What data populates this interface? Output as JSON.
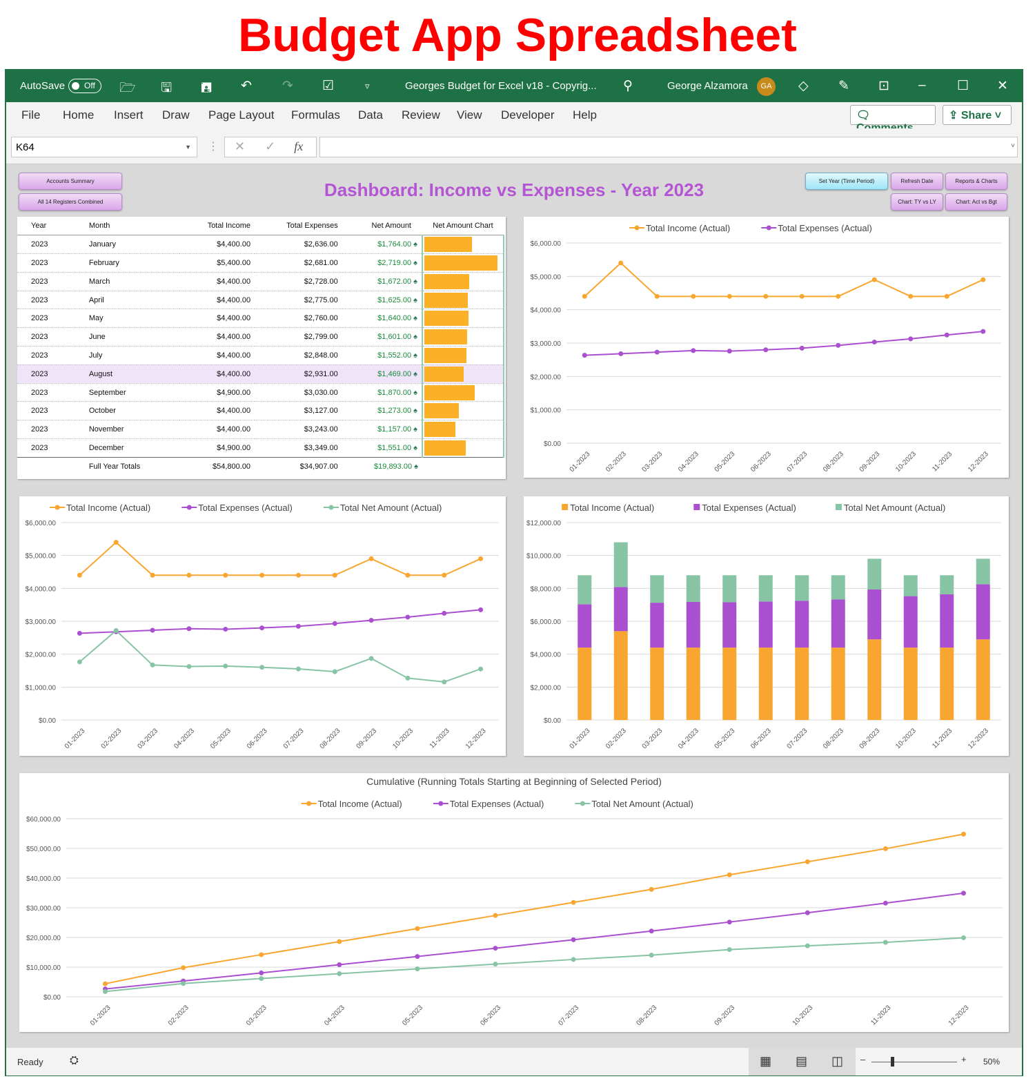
{
  "headline": "Budget App Spreadsheet",
  "titlebar": {
    "autosave": "AutoSave",
    "autosave_state": "Off",
    "doc_title": "Georges Budget for Excel v18 - Copyrig...",
    "user": "George Alzamora",
    "initials": "GA"
  },
  "menu": {
    "items": [
      "File",
      "Home",
      "Insert",
      "Draw",
      "Page Layout",
      "Formulas",
      "Data",
      "Review",
      "View",
      "Developer",
      "Help"
    ],
    "comments": "Comments",
    "share": "Share"
  },
  "formula": {
    "name_box": "K64",
    "fx": "fx",
    "value": ""
  },
  "dashboard": {
    "title": "Dashboard: Income vs Expenses - Year 2023",
    "buttons": {
      "accounts_summary": "Accounts Summary",
      "registers": "All 14 Registers Combined",
      "set_year": "Set Year (Time Period)",
      "refresh": "Refresh Date",
      "reports": "Reports & Charts",
      "tyly": "Chart: TY vs LY",
      "actbgt": "Chart: Act vs Bgt"
    }
  },
  "table": {
    "headers": [
      "Year",
      "Month",
      "Total Income",
      "Total Expenses",
      "Net Amount",
      "Net Amount Chart"
    ],
    "rows": [
      [
        "2023",
        "January",
        "$4,400.00",
        "$2,636.00",
        "$1,764.00"
      ],
      [
        "2023",
        "February",
        "$5,400.00",
        "$2,681.00",
        "$2,719.00"
      ],
      [
        "2023",
        "March",
        "$4,400.00",
        "$2,728.00",
        "$1,672.00"
      ],
      [
        "2023",
        "April",
        "$4,400.00",
        "$2,775.00",
        "$1,625.00"
      ],
      [
        "2023",
        "May",
        "$4,400.00",
        "$2,760.00",
        "$1,640.00"
      ],
      [
        "2023",
        "June",
        "$4,400.00",
        "$2,799.00",
        "$1,601.00"
      ],
      [
        "2023",
        "July",
        "$4,400.00",
        "$2,848.00",
        "$1,552.00"
      ],
      [
        "2023",
        "August",
        "$4,400.00",
        "$2,931.00",
        "$1,469.00"
      ],
      [
        "2023",
        "September",
        "$4,900.00",
        "$3,030.00",
        "$1,870.00"
      ],
      [
        "2023",
        "October",
        "$4,400.00",
        "$3,127.00",
        "$1,273.00"
      ],
      [
        "2023",
        "November",
        "$4,400.00",
        "$3,243.00",
        "$1,157.00"
      ],
      [
        "2023",
        "December",
        "$4,900.00",
        "$3,349.00",
        "$1,551.00"
      ]
    ],
    "net_values": [
      1764,
      2719,
      1672,
      1625,
      1640,
      1601,
      1552,
      1469,
      1870,
      1273,
      1157,
      1551
    ],
    "highlight_row": 7,
    "totals": [
      "Full Year Totals",
      "$54,800.00",
      "$34,907.00",
      "$19,893.00"
    ],
    "bar_color": "#fbb028"
  },
  "colors": {
    "income": "#f9a630",
    "expenses": "#a94fd0",
    "net": "#86c4a4",
    "accent": "#1e7145"
  },
  "chart_data": [
    {
      "type": "line",
      "title": "",
      "categories": [
        "01-2023",
        "02-2023",
        "03-2023",
        "04-2023",
        "05-2023",
        "06-2023",
        "07-2023",
        "08-2023",
        "09-2023",
        "10-2023",
        "11-2023",
        "12-2023"
      ],
      "ylim": [
        0,
        6000
      ],
      "yticks": [
        "$0.00",
        "$1,000.00",
        "$2,000.00",
        "$3,000.00",
        "$4,000.00",
        "$5,000.00",
        "$6,000.00"
      ],
      "grid": true,
      "legend": "top",
      "series": [
        {
          "name": "Total Income (Actual)",
          "color": "#f9a630",
          "values": [
            4400,
            5400,
            4400,
            4400,
            4400,
            4400,
            4400,
            4400,
            4900,
            4400,
            4400,
            4900
          ]
        },
        {
          "name": "Total Expenses (Actual)",
          "color": "#a94fd0",
          "values": [
            2636,
            2681,
            2728,
            2775,
            2760,
            2799,
            2848,
            2931,
            3030,
            3127,
            3243,
            3349
          ]
        }
      ]
    },
    {
      "type": "line",
      "title": "",
      "categories": [
        "01-2023",
        "02-2023",
        "03-2023",
        "04-2023",
        "05-2023",
        "06-2023",
        "07-2023",
        "08-2023",
        "09-2023",
        "10-2023",
        "11-2023",
        "12-2023"
      ],
      "ylim": [
        0,
        6000
      ],
      "yticks": [
        "$0.00",
        "$1,000.00",
        "$2,000.00",
        "$3,000.00",
        "$4,000.00",
        "$5,000.00",
        "$6,000.00"
      ],
      "grid": true,
      "legend": "top",
      "series": [
        {
          "name": "Total Income (Actual)",
          "color": "#f9a630",
          "values": [
            4400,
            5400,
            4400,
            4400,
            4400,
            4400,
            4400,
            4400,
            4900,
            4400,
            4400,
            4900
          ]
        },
        {
          "name": "Total Expenses (Actual)",
          "color": "#a94fd0",
          "values": [
            2636,
            2681,
            2728,
            2775,
            2760,
            2799,
            2848,
            2931,
            3030,
            3127,
            3243,
            3349
          ]
        },
        {
          "name": "Total Net Amount (Actual)",
          "color": "#86c4a4",
          "values": [
            1764,
            2719,
            1672,
            1625,
            1640,
            1601,
            1552,
            1469,
            1870,
            1273,
            1157,
            1551
          ]
        }
      ]
    },
    {
      "type": "bar",
      "stacked": true,
      "title": "",
      "categories": [
        "01-2023",
        "02-2023",
        "03-2023",
        "04-2023",
        "05-2023",
        "06-2023",
        "07-2023",
        "08-2023",
        "09-2023",
        "10-2023",
        "11-2023",
        "12-2023"
      ],
      "ylim": [
        0,
        12000
      ],
      "yticks": [
        "$0.00",
        "$2,000.00",
        "$4,000.00",
        "$6,000.00",
        "$8,000.00",
        "$10,000.00",
        "$12,000.00"
      ],
      "grid": true,
      "legend": "top",
      "series": [
        {
          "name": "Total Income (Actual)",
          "color": "#f9a630",
          "values": [
            4400,
            5400,
            4400,
            4400,
            4400,
            4400,
            4400,
            4400,
            4900,
            4400,
            4400,
            4900
          ]
        },
        {
          "name": "Total Expenses (Actual)",
          "color": "#a94fd0",
          "values": [
            2636,
            2681,
            2728,
            2775,
            2760,
            2799,
            2848,
            2931,
            3030,
            3127,
            3243,
            3349
          ]
        },
        {
          "name": "Total Net Amount (Actual)",
          "color": "#86c4a4",
          "values": [
            1764,
            2719,
            1672,
            1625,
            1640,
            1601,
            1552,
            1469,
            1870,
            1273,
            1157,
            1551
          ]
        }
      ]
    },
    {
      "type": "line",
      "title": "Cumulative (Running Totals Starting at Beginning of Selected Period)",
      "categories": [
        "01-2023",
        "02-2023",
        "03-2023",
        "04-2023",
        "05-2023",
        "06-2023",
        "07-2023",
        "08-2023",
        "09-2023",
        "10-2023",
        "11-2023",
        "12-2023"
      ],
      "ylim": [
        0,
        60000
      ],
      "yticks": [
        "$0.00",
        "$10,000.00",
        "$20,000.00",
        "$30,000.00",
        "$40,000.00",
        "$50,000.00",
        "$60,000.00"
      ],
      "grid": true,
      "legend": "top",
      "series": [
        {
          "name": "Total Income (Actual)",
          "color": "#f9a630",
          "values": [
            4400,
            9800,
            14200,
            18600,
            23000,
            27400,
            31800,
            36200,
            41100,
            45500,
            49900,
            54800
          ]
        },
        {
          "name": "Total Expenses (Actual)",
          "color": "#a94fd0",
          "values": [
            2636,
            5317,
            8045,
            10820,
            13580,
            16379,
            19227,
            22158,
            25188,
            28315,
            31558,
            34907
          ]
        },
        {
          "name": "Total Net Amount (Actual)",
          "color": "#86c4a4",
          "values": [
            1764,
            4483,
            6155,
            7780,
            9420,
            11021,
            12573,
            14042,
            15912,
            17185,
            18342,
            19893
          ]
        }
      ]
    }
  ],
  "status": {
    "ready": "Ready",
    "zoom": "50%"
  }
}
